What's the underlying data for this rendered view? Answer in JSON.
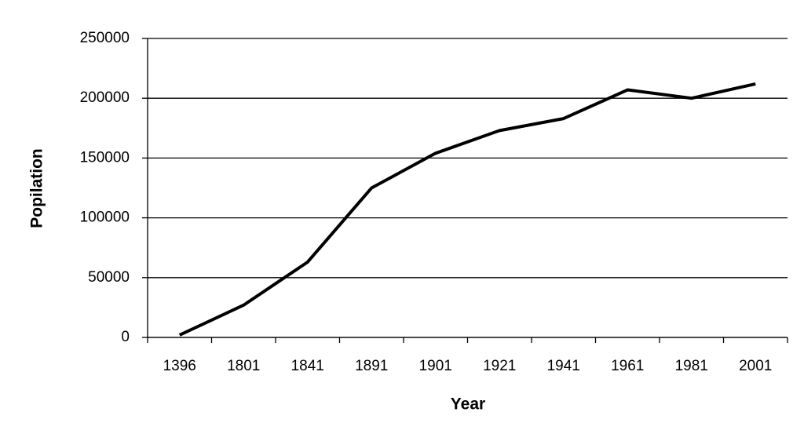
{
  "chart_data": {
    "type": "line",
    "x_label": "Year",
    "y_label": "Popilation",
    "categories": [
      "1396",
      "1801",
      "1841",
      "1891",
      "1901",
      "1921",
      "1941",
      "1961",
      "1981",
      "2001"
    ],
    "values": [
      2000,
      27000,
      63000,
      125000,
      154000,
      173000,
      183000,
      207000,
      200000,
      212000
    ],
    "color": "#000000",
    "ylim": [
      0,
      250000
    ],
    "yticks": [
      0,
      50000,
      100000,
      150000,
      200000,
      250000
    ],
    "grid": true
  }
}
